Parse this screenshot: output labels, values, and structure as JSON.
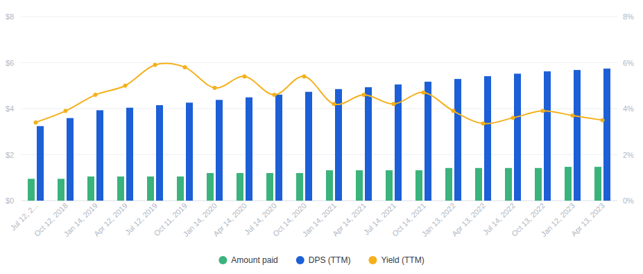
{
  "chart_data": {
    "type": "bar",
    "categories": [
      "Jul 12, 2...",
      "Oct 12, 2018",
      "Jan 14, 2019",
      "Apr 12, 2019",
      "Jul 12, 2019",
      "Oct 11, 2019",
      "Jan 14, 2020",
      "Apr 14, 2020",
      "Jul 14, 2020",
      "Oct 14, 2020",
      "Jan 14, 2021",
      "Apr 14, 2021",
      "Jul 14, 2021",
      "Oct 14, 2021",
      "Jan 13, 2022",
      "Apr 13, 2022",
      "Jul 14, 2022",
      "Oct 13, 2022",
      "Jan 12, 2023",
      "Apr 13, 2023"
    ],
    "series": [
      {
        "name": "Amount paid",
        "type": "bar",
        "color": "#3ab37c",
        "values": [
          0.95,
          0.95,
          1.05,
          1.05,
          1.05,
          1.05,
          1.2,
          1.2,
          1.2,
          1.2,
          1.32,
          1.32,
          1.32,
          1.32,
          1.42,
          1.42,
          1.42,
          1.42,
          1.47,
          1.47
        ]
      },
      {
        "name": "DPS (TTM)",
        "type": "bar",
        "color": "#1c5fd6",
        "values": [
          3.24,
          3.59,
          3.93,
          4.04,
          4.15,
          4.26,
          4.38,
          4.49,
          4.61,
          4.73,
          4.85,
          4.93,
          5.05,
          5.17,
          5.29,
          5.41,
          5.52,
          5.62,
          5.68,
          5.74
        ]
      },
      {
        "name": "Yield (TTM)",
        "type": "line",
        "axis": "y2",
        "color": "#f5b01a",
        "marker": "circle",
        "values": [
          3.4,
          3.9,
          4.6,
          5.0,
          5.9,
          5.8,
          4.9,
          5.4,
          4.6,
          5.4,
          4.2,
          4.6,
          4.2,
          4.7,
          3.9,
          3.35,
          3.6,
          3.9,
          3.7,
          3.5
        ]
      }
    ],
    "ylim": [
      0,
      8
    ],
    "yticks": [
      {
        "value": 0,
        "label": "$0"
      },
      {
        "value": 2,
        "label": "$2"
      },
      {
        "value": 4,
        "label": "$4"
      },
      {
        "value": 6,
        "label": "$6"
      },
      {
        "value": 8,
        "label": "$8"
      }
    ],
    "y2lim": [
      0,
      8
    ],
    "y2ticks": [
      {
        "value": 0,
        "label": "0%"
      },
      {
        "value": 2,
        "label": "2%"
      },
      {
        "value": 4,
        "label": "4%"
      },
      {
        "value": 6,
        "label": "6%"
      },
      {
        "value": 8,
        "label": "8%"
      }
    ],
    "grid": true,
    "legend": "bottom"
  }
}
